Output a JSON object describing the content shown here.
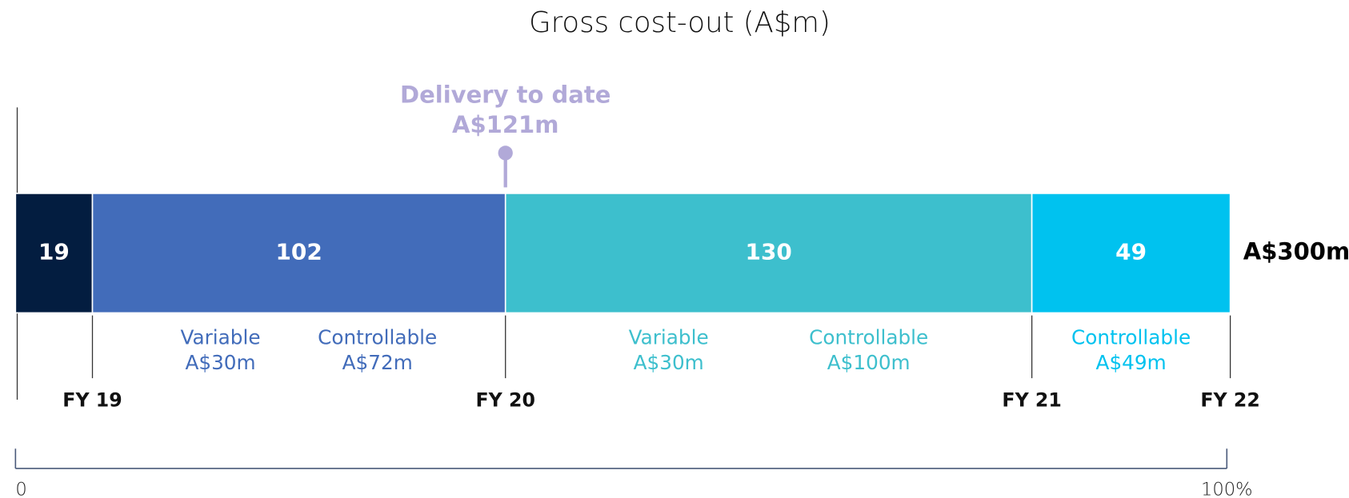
{
  "chart_data": {
    "type": "stacked_bar",
    "title": "Gross cost-out (A$m)",
    "xlim": [
      0,
      300
    ],
    "segments": [
      {
        "value": 19,
        "color": "#031d40",
        "end_label": "FY 19"
      },
      {
        "value": 102,
        "color": "#426cba",
        "end_label": "FY 20",
        "breakdown": [
          {
            "label": "Variable",
            "value": 30,
            "value_label": "A$30m"
          },
          {
            "label": "Controllable",
            "value": 72,
            "value_label": "A$72m"
          }
        ]
      },
      {
        "value": 130,
        "color": "#3dbfcd",
        "end_label": "FY 21",
        "breakdown": [
          {
            "label": "Variable",
            "value": 30,
            "value_label": "A$30m"
          },
          {
            "label": "Controllable",
            "value": 100,
            "value_label": "A$100m"
          }
        ]
      },
      {
        "value": 49,
        "color": "#00c2ef",
        "end_label": "FY 22",
        "breakdown": [
          {
            "label": "Controllable",
            "value": 49,
            "value_label": "A$49m"
          }
        ]
      }
    ],
    "marker": {
      "label": "Delivery to date",
      "value": 121,
      "value_label": "A$121m",
      "color": "#b1a9d8"
    },
    "total": {
      "value": 300,
      "value_label": "A$300m"
    },
    "scale": {
      "xlim": [
        0,
        100
      ],
      "xticks": [
        0,
        {
          "value": 100,
          "label": "100%"
        }
      ]
    }
  }
}
